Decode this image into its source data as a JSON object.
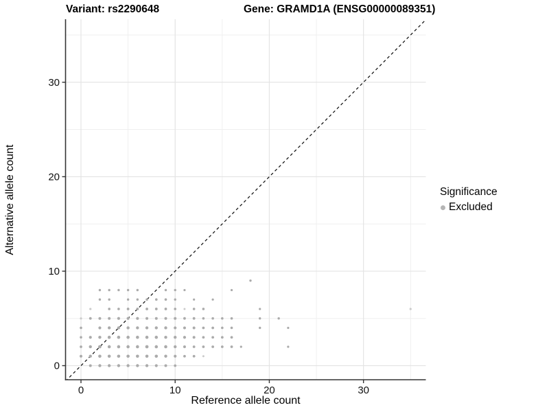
{
  "header": {
    "variant_title": "Variant: rs2290648",
    "gene_title": "Gene: GRAMD1A (ENSG00000089351)"
  },
  "legend": {
    "title": "Significance",
    "items": [
      {
        "label": "Excluded",
        "marker_color": "#b5b5b5"
      }
    ]
  },
  "colors": {
    "point": "#ababab",
    "point_light": "#cbcbcb",
    "grid_major": "#e4e4e4",
    "grid_minor": "#efefef",
    "axis_line": "#333333",
    "tick_text": "#111111",
    "reference_line": "#111111"
  },
  "chart_data": {
    "type": "scatter",
    "title": "Variant: rs2290648 | Gene: GRAMD1A (ENSG00000089351)",
    "xlabel": "Reference allele count",
    "ylabel": "Alternative allele count",
    "xlim": [
      -1.64,
      36.62
    ],
    "ylim": [
      -1.49,
      36.67
    ],
    "x_ticks": [
      0,
      10,
      20,
      30
    ],
    "y_ticks": [
      0,
      10,
      20,
      30
    ],
    "x_minor_gridlines": [
      5,
      15,
      25,
      35
    ],
    "y_minor_gridlines": [
      5,
      15,
      25,
      35
    ],
    "grid": true,
    "legend_position": "right",
    "reference_line": {
      "type": "identity",
      "style": "dashed"
    },
    "series": [
      {
        "name": "Excluded",
        "point_format": "[ref_count, alt_count, radius_px, light_flag]",
        "points": [
          [
            1,
            0,
            2.0
          ],
          [
            2,
            0,
            2.2
          ],
          [
            3,
            0,
            2.2
          ],
          [
            4,
            0,
            2.2
          ],
          [
            5,
            0,
            2.2
          ],
          [
            6,
            0,
            2.2
          ],
          [
            7,
            0,
            2.2
          ],
          [
            8,
            0,
            2.1
          ],
          [
            9,
            0,
            2.0
          ],
          [
            10,
            0,
            1.9
          ],
          [
            0,
            1,
            2.0
          ],
          [
            1,
            1,
            2.2
          ],
          [
            2,
            1,
            2.3
          ],
          [
            3,
            1,
            2.3
          ],
          [
            4,
            1,
            2.3
          ],
          [
            5,
            1,
            2.3
          ],
          [
            6,
            1,
            2.3
          ],
          [
            7,
            1,
            2.3
          ],
          [
            8,
            1,
            2.3
          ],
          [
            9,
            1,
            2.2
          ],
          [
            10,
            1,
            2.1
          ],
          [
            11,
            1,
            1.9
          ],
          [
            12,
            1,
            1.9
          ],
          [
            13,
            1,
            1.5,
            1
          ],
          [
            0,
            2,
            1.9
          ],
          [
            1,
            2,
            2.2
          ],
          [
            2,
            2,
            2.4
          ],
          [
            3,
            2,
            2.3
          ],
          [
            4,
            2,
            2.3
          ],
          [
            5,
            2,
            2.3
          ],
          [
            6,
            2,
            2.3
          ],
          [
            7,
            2,
            2.4
          ],
          [
            8,
            2,
            2.3
          ],
          [
            9,
            2,
            2.3
          ],
          [
            10,
            2,
            2.2
          ],
          [
            11,
            2,
            2.0
          ],
          [
            12,
            2,
            1.9
          ],
          [
            13,
            2,
            1.9
          ],
          [
            14,
            2,
            1.9
          ],
          [
            15,
            2,
            1.9
          ],
          [
            16,
            2,
            1.9
          ],
          [
            17,
            2,
            1.6
          ],
          [
            22,
            2,
            1.6
          ],
          [
            0,
            3,
            1.8
          ],
          [
            1,
            3,
            2.1
          ],
          [
            2,
            3,
            2.2
          ],
          [
            3,
            3,
            2.3
          ],
          [
            4,
            3,
            2.3
          ],
          [
            5,
            3,
            2.3
          ],
          [
            6,
            3,
            2.3
          ],
          [
            7,
            3,
            2.3
          ],
          [
            8,
            3,
            2.3
          ],
          [
            9,
            3,
            2.2
          ],
          [
            10,
            3,
            2.2
          ],
          [
            11,
            3,
            2.1
          ],
          [
            12,
            3,
            2.0
          ],
          [
            13,
            3,
            1.9
          ],
          [
            14,
            3,
            1.9
          ],
          [
            15,
            3,
            1.9
          ],
          [
            16,
            3,
            1.9
          ],
          [
            0,
            4,
            1.8
          ],
          [
            2,
            4,
            2.1
          ],
          [
            3,
            4,
            2.2
          ],
          [
            4,
            4,
            2.2
          ],
          [
            5,
            4,
            2.2
          ],
          [
            6,
            4,
            2.2
          ],
          [
            7,
            4,
            2.2
          ],
          [
            8,
            4,
            2.2
          ],
          [
            9,
            4,
            2.2
          ],
          [
            10,
            4,
            2.1
          ],
          [
            11,
            4,
            2.0
          ],
          [
            12,
            4,
            2.0
          ],
          [
            13,
            4,
            1.9
          ],
          [
            14,
            4,
            1.9
          ],
          [
            15,
            4,
            1.8
          ],
          [
            16,
            4,
            1.8
          ],
          [
            19,
            4,
            1.7
          ],
          [
            22,
            4,
            1.6
          ],
          [
            0,
            5,
            1.6,
            1
          ],
          [
            1,
            5,
            1.9
          ],
          [
            2,
            5,
            2.0
          ],
          [
            3,
            5,
            2.0
          ],
          [
            4,
            5,
            2.1
          ],
          [
            5,
            5,
            2.1
          ],
          [
            6,
            5,
            2.1
          ],
          [
            7,
            5,
            2.0
          ],
          [
            8,
            5,
            2.0
          ],
          [
            9,
            5,
            2.0
          ],
          [
            10,
            5,
            2.0
          ],
          [
            11,
            5,
            1.9
          ],
          [
            12,
            5,
            1.9
          ],
          [
            13,
            5,
            1.8
          ],
          [
            14,
            5,
            1.8
          ],
          [
            15,
            5,
            1.8
          ],
          [
            16,
            5,
            1.8
          ],
          [
            19,
            5,
            1.7
          ],
          [
            21,
            5,
            1.7
          ],
          [
            1,
            6,
            1.6,
            1
          ],
          [
            3,
            6,
            1.8
          ],
          [
            4,
            6,
            1.8
          ],
          [
            5,
            6,
            1.9
          ],
          [
            6,
            6,
            1.9
          ],
          [
            7,
            6,
            1.9
          ],
          [
            8,
            6,
            1.9
          ],
          [
            9,
            6,
            1.9
          ],
          [
            10,
            6,
            1.8
          ],
          [
            11,
            6,
            1.5,
            1
          ],
          [
            12,
            6,
            1.8
          ],
          [
            13,
            6,
            1.8
          ],
          [
            19,
            6,
            1.6
          ],
          [
            35,
            6,
            1.6,
            1
          ],
          [
            2,
            7,
            1.7
          ],
          [
            3,
            7,
            1.7
          ],
          [
            5,
            7,
            1.7
          ],
          [
            6,
            7,
            1.7
          ],
          [
            7,
            7,
            1.8
          ],
          [
            8,
            7,
            1.8
          ],
          [
            9,
            7,
            1.8
          ],
          [
            10,
            7,
            1.7
          ],
          [
            12,
            7,
            1.6
          ],
          [
            14,
            7,
            1.6
          ],
          [
            2,
            8,
            1.7
          ],
          [
            3,
            8,
            1.7
          ],
          [
            4,
            8,
            1.7
          ],
          [
            5,
            8,
            1.7
          ],
          [
            6,
            8,
            1.7
          ],
          [
            9,
            8,
            1.7
          ],
          [
            10,
            8,
            1.7
          ],
          [
            11,
            8,
            1.6
          ],
          [
            16,
            8,
            1.6
          ],
          [
            18,
            9,
            1.7
          ]
        ]
      }
    ]
  }
}
